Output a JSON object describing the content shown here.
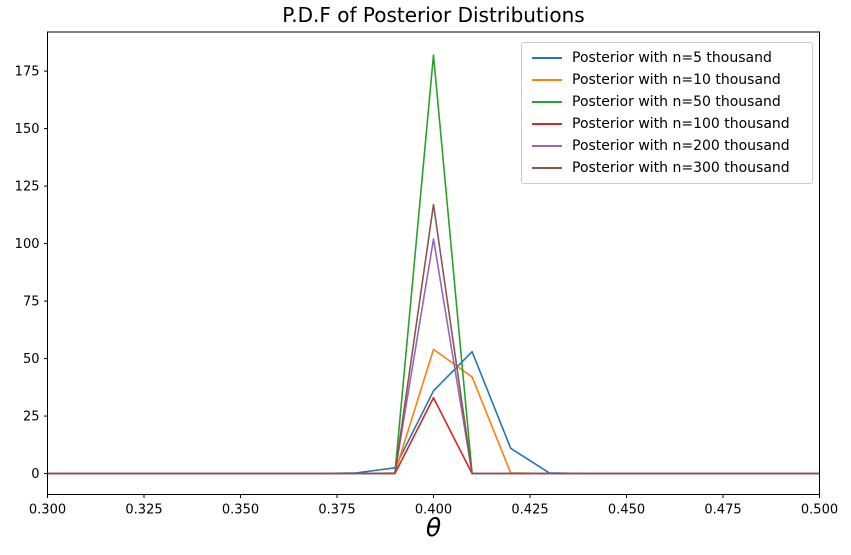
{
  "window": {
    "background_color": "#ffffff",
    "text_color": "#000000"
  },
  "chart_data": {
    "type": "line",
    "title": "P.D.F of Posterior Distributions",
    "xlabel": "θ",
    "ylabel": "",
    "grid": false,
    "legend_position": "upper right",
    "axis_color": "#000000",
    "xlim": [
      0.3,
      0.5
    ],
    "ylim": [
      -9.1,
      192
    ],
    "xtick_labels": [
      "0.300",
      "0.325",
      "0.350",
      "0.375",
      "0.400",
      "0.425",
      "0.450",
      "0.475",
      "0.500"
    ],
    "yticks": [
      0,
      25,
      50,
      75,
      100,
      125,
      150,
      175
    ],
    "x": [
      0.3,
      0.31,
      0.32,
      0.33,
      0.34,
      0.35,
      0.36,
      0.37,
      0.38,
      0.39,
      0.4,
      0.41,
      0.42,
      0.43,
      0.44,
      0.45,
      0.46,
      0.47,
      0.48,
      0.49,
      0.5
    ],
    "series": [
      {
        "name": "Posterior with n=5 thousand",
        "color": "#1f77b4",
        "values": [
          0,
          0,
          0,
          0,
          0,
          0,
          0,
          0,
          0.3,
          2.5,
          36,
          53,
          11,
          0.3,
          0,
          0,
          0,
          0,
          0,
          0,
          0
        ]
      },
      {
        "name": "Posterior with n=10 thousand",
        "color": "#ff7f0e",
        "values": [
          0,
          0,
          0,
          0,
          0,
          0,
          0,
          0,
          0,
          0.3,
          54,
          42,
          0.3,
          0,
          0,
          0,
          0,
          0,
          0,
          0,
          0
        ]
      },
      {
        "name": "Posterior with n=50 thousand",
        "color": "#2ca02c",
        "values": [
          0,
          0,
          0,
          0,
          0,
          0,
          0,
          0,
          0,
          0,
          182,
          0,
          0,
          0,
          0,
          0,
          0,
          0,
          0,
          0,
          0
        ]
      },
      {
        "name": "Posterior with n=100 thousand",
        "color": "#d62728",
        "values": [
          0,
          0,
          0,
          0,
          0,
          0,
          0,
          0,
          0,
          0,
          33,
          0,
          0,
          0,
          0,
          0,
          0,
          0,
          0,
          0,
          0
        ]
      },
      {
        "name": "Posterior with n=200 thousand",
        "color": "#9467bd",
        "values": [
          0,
          0,
          0,
          0,
          0,
          0,
          0,
          0,
          0,
          0,
          102,
          0,
          0,
          0,
          0,
          0,
          0,
          0,
          0,
          0,
          0
        ]
      },
      {
        "name": "Posterior with n=300 thousand",
        "color": "#8c564b",
        "values": [
          0,
          0,
          0,
          0,
          0,
          0,
          0,
          0,
          0,
          0,
          117,
          0,
          0,
          0,
          0,
          0,
          0,
          0,
          0,
          0,
          0
        ]
      }
    ]
  }
}
